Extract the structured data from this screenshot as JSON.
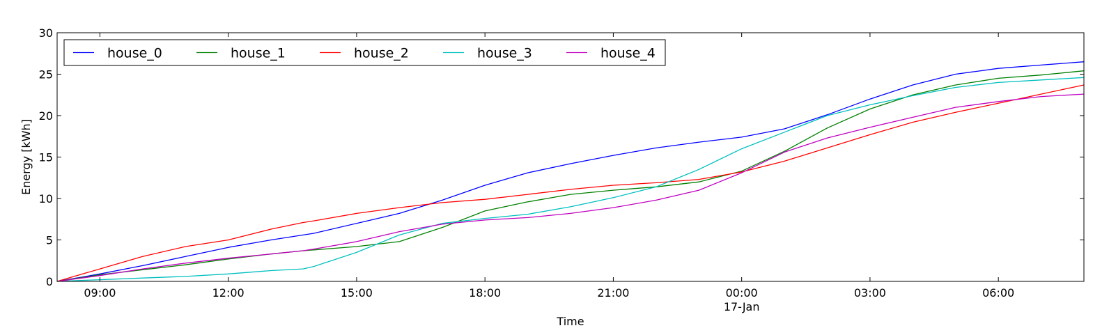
{
  "chart_data": {
    "type": "line",
    "title": "",
    "xlabel": "Time",
    "ylabel": "Energy [kWh]",
    "xlim": [
      "2017-01-16 08:00",
      "2017-01-17 08:00"
    ],
    "ylim": [
      0,
      30
    ],
    "grid": false,
    "legend_position": "top-left",
    "x_ticks": [
      {
        "label": "09:00"
      },
      {
        "label": "12:00"
      },
      {
        "label": "15:00"
      },
      {
        "label": "18:00"
      },
      {
        "label": "21:00"
      },
      {
        "label": "00:00",
        "sublabel": "17-Jan"
      },
      {
        "label": "03:00"
      },
      {
        "label": "06:00"
      }
    ],
    "y_ticks": [
      0,
      5,
      10,
      15,
      20,
      25,
      30
    ],
    "x": [
      "2017-01-16 08:00",
      "2017-01-16 09:00",
      "2017-01-16 10:00",
      "2017-01-16 11:00",
      "2017-01-16 12:00",
      "2017-01-16 13:00",
      "2017-01-16 13:45",
      "2017-01-16 14:00",
      "2017-01-16 15:00",
      "2017-01-16 16:00",
      "2017-01-16 17:00",
      "2017-01-16 18:00",
      "2017-01-16 19:00",
      "2017-01-16 20:00",
      "2017-01-16 21:00",
      "2017-01-16 22:00",
      "2017-01-16 23:00",
      "2017-01-17 00:00",
      "2017-01-17 01:00",
      "2017-01-17 02:00",
      "2017-01-17 03:00",
      "2017-01-17 04:00",
      "2017-01-17 05:00",
      "2017-01-17 06:00",
      "2017-01-17 07:00",
      "2017-01-17 08:00"
    ],
    "series": [
      {
        "name": "house_0",
        "color": "#0000ff",
        "values": [
          0.0,
          0.9,
          1.9,
          3.0,
          4.1,
          5.0,
          5.6,
          5.8,
          7.0,
          8.2,
          9.8,
          11.6,
          13.1,
          14.2,
          15.2,
          16.1,
          16.8,
          17.4,
          18.4,
          20.1,
          22.0,
          23.7,
          25.0,
          25.7,
          26.1,
          26.5
        ]
      },
      {
        "name": "house_1",
        "color": "#008000",
        "values": [
          0.0,
          0.8,
          1.4,
          2.0,
          2.7,
          3.3,
          3.7,
          3.8,
          4.2,
          4.8,
          6.5,
          8.5,
          9.6,
          10.5,
          11.0,
          11.4,
          12.0,
          13.3,
          15.7,
          18.5,
          20.8,
          22.5,
          23.7,
          24.5,
          24.9,
          25.4
        ]
      },
      {
        "name": "house_2",
        "color": "#ff0000",
        "values": [
          0.0,
          1.5,
          3.0,
          4.2,
          5.0,
          6.3,
          7.1,
          7.3,
          8.2,
          8.9,
          9.5,
          9.9,
          10.5,
          11.1,
          11.6,
          11.9,
          12.3,
          13.2,
          14.5,
          16.1,
          17.7,
          19.2,
          20.4,
          21.5,
          22.6,
          23.7
        ]
      },
      {
        "name": "house_3",
        "color": "#00bfbf",
        "values": [
          0.0,
          0.2,
          0.4,
          0.6,
          0.9,
          1.3,
          1.5,
          1.8,
          3.5,
          5.6,
          7.0,
          7.6,
          8.1,
          9.0,
          10.1,
          11.4,
          13.5,
          16.0,
          18.0,
          20.0,
          21.3,
          22.4,
          23.4,
          24.0,
          24.3,
          24.6
        ]
      },
      {
        "name": "house_4",
        "color": "#bf00bf",
        "values": [
          0.0,
          0.7,
          1.5,
          2.2,
          2.8,
          3.3,
          3.7,
          3.9,
          4.8,
          6.0,
          6.9,
          7.4,
          7.7,
          8.2,
          8.9,
          9.8,
          11.0,
          13.1,
          15.6,
          17.3,
          18.6,
          19.8,
          21.0,
          21.7,
          22.3,
          22.6
        ]
      }
    ]
  }
}
